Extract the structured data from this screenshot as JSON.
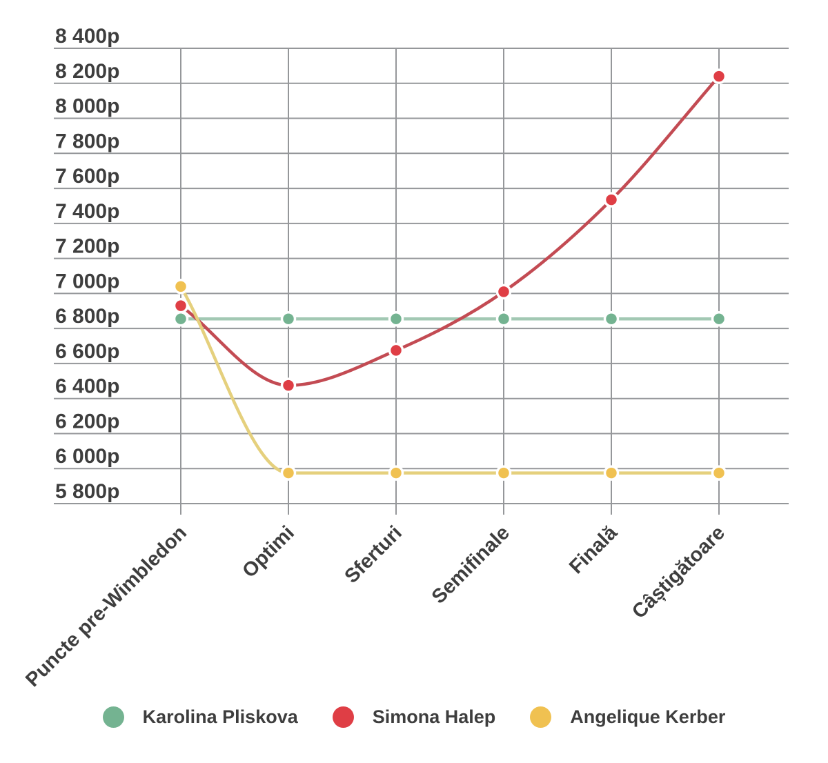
{
  "chart_data": {
    "type": "line",
    "categories": [
      "Puncte pre-Wimbledon",
      "Optimi",
      "Sferturi",
      "Semifinale",
      "Finală",
      "Câștigătoare"
    ],
    "series": [
      {
        "name": "Karolina Pliskova",
        "dot_color": "#74B391",
        "line_color": "#A2C8B3",
        "values": [
          6855,
          6855,
          6855,
          6855,
          6855,
          6855
        ]
      },
      {
        "name": "Simona Halep",
        "dot_color": "#DF3E45",
        "line_color": "#C34B53",
        "values": [
          6930,
          6475,
          6675,
          7010,
          7535,
          8240
        ]
      },
      {
        "name": "Angelique Kerber",
        "dot_color": "#F0C151",
        "line_color": "#E5D07D",
        "values": [
          7040,
          5975,
          5975,
          5975,
          5975,
          5975
        ]
      }
    ],
    "y_ticks": [
      {
        "label": "8 400p",
        "value": 8400
      },
      {
        "label": "8 200p",
        "value": 8200
      },
      {
        "label": "8 000p",
        "value": 8000
      },
      {
        "label": "7 800p",
        "value": 7800
      },
      {
        "label": "7 600p",
        "value": 7600
      },
      {
        "label": "7 400p",
        "value": 7400
      },
      {
        "label": "7 200p",
        "value": 7200
      },
      {
        "label": "7 000p",
        "value": 7000
      },
      {
        "label": "6 800p",
        "value": 6800
      },
      {
        "label": "6 600p",
        "value": 6600
      },
      {
        "label": "6 400p",
        "value": 6400
      },
      {
        "label": "6 200p",
        "value": 6200
      },
      {
        "label": "6 000p",
        "value": 6000
      },
      {
        "label": "5 800p",
        "value": 5800
      }
    ],
    "ylim": [
      5800,
      8400
    ],
    "unit": "p",
    "grid": true,
    "legend_position": "bottom",
    "grid_color": "#95979A",
    "text_color": "#3E3E3E",
    "background_color": "#FFFFFF"
  }
}
